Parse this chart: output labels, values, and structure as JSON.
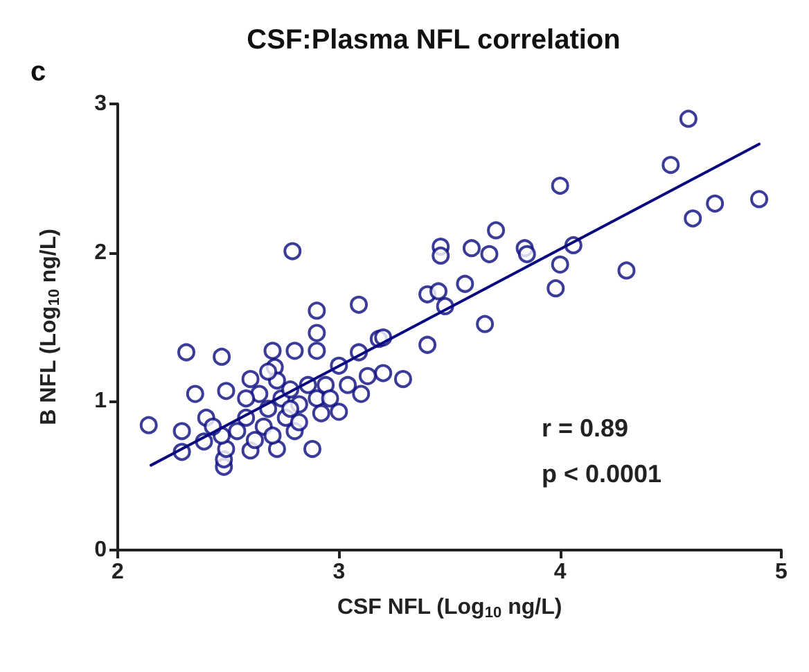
{
  "chart_data": {
    "type": "scatter",
    "title": "CSF:Plasma NFL correlation",
    "xlabel": "CSF NFL (Log$_{10}$ ng/L)",
    "ylabel": "B NFL (Log$_{10}$ ng/L)",
    "annotations": [
      "c",
      "r = 0.89",
      "p < 0.0001"
    ],
    "xlim": [
      2,
      5
    ],
    "ylim": [
      0,
      3
    ],
    "xticks": [
      2,
      3,
      4,
      5
    ],
    "yticks": [
      0,
      1,
      2,
      3
    ],
    "grid": false,
    "marker": "circle",
    "series": [
      {
        "color": "#0a0a80",
        "x": [
          4.58,
          4.5,
          4.0,
          4.6,
          4.7,
          4.9,
          3.71,
          3.46,
          3.46,
          3.6,
          3.68,
          3.84,
          3.85,
          4.06,
          4.0,
          3.98,
          4.3,
          2.79,
          3.57,
          3.4,
          3.45,
          3.48,
          3.66,
          3.4,
          3.09,
          3.18,
          3.2,
          2.9,
          2.9,
          2.9,
          2.8,
          2.7,
          2.31,
          2.47,
          2.71,
          3.09,
          3.0,
          3.2,
          3.29,
          3.1,
          3.13,
          3.04,
          3.0,
          2.88,
          2.35,
          2.49,
          2.14,
          2.29,
          2.29,
          2.39,
          2.4,
          2.48,
          2.48,
          2.49,
          2.6,
          2.72,
          2.8,
          2.6,
          2.64,
          2.68,
          2.74,
          2.78,
          2.82,
          2.86,
          2.9,
          2.92,
          2.58,
          2.66,
          2.76,
          2.82,
          2.54,
          2.47,
          2.43,
          2.58,
          2.72,
          2.94,
          2.96,
          2.68,
          2.78,
          2.7,
          2.62
        ],
        "values": [
          2.9,
          2.59,
          2.45,
          2.23,
          2.33,
          2.36,
          2.15,
          2.04,
          1.98,
          2.03,
          1.99,
          2.03,
          1.99,
          2.05,
          1.92,
          1.76,
          1.88,
          2.01,
          1.79,
          1.72,
          1.74,
          1.64,
          1.52,
          1.38,
          1.65,
          1.42,
          1.43,
          1.61,
          1.46,
          1.34,
          1.34,
          1.34,
          1.33,
          1.3,
          1.23,
          1.33,
          1.24,
          1.19,
          1.15,
          1.05,
          1.17,
          1.11,
          0.93,
          0.68,
          1.05,
          1.07,
          0.84,
          0.8,
          0.66,
          0.73,
          0.89,
          0.56,
          0.61,
          0.68,
          0.67,
          0.68,
          0.8,
          1.15,
          1.05,
          0.95,
          1.02,
          1.08,
          0.98,
          1.11,
          1.02,
          0.92,
          0.89,
          0.83,
          0.89,
          0.86,
          0.8,
          0.77,
          0.83,
          1.02,
          1.14,
          1.11,
          1.02,
          1.2,
          0.95,
          0.77,
          0.74
        ]
      },
      {
        "type": "line",
        "color": "#0a0a80",
        "marker": "none",
        "line_style": "solid",
        "x": [
          2.15,
          4.9
        ],
        "values": [
          0.57,
          2.73
        ]
      }
    ]
  }
}
